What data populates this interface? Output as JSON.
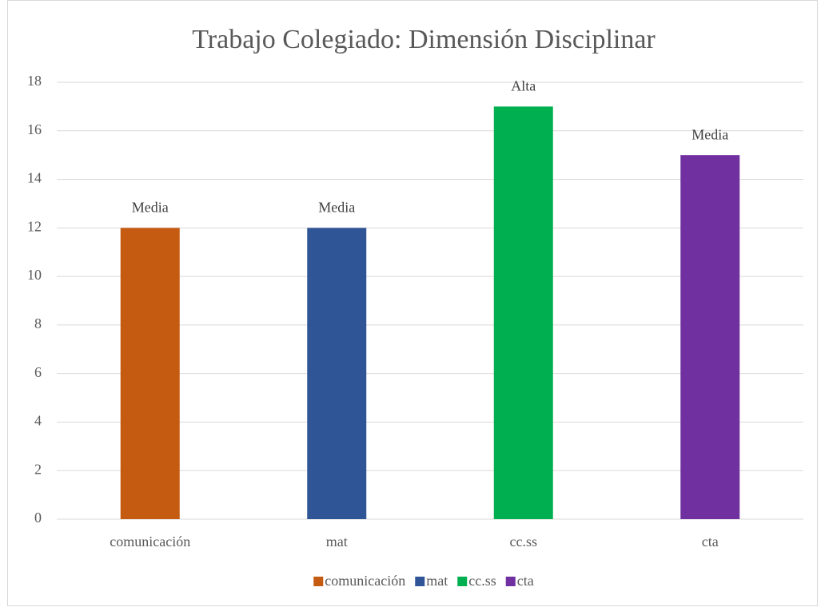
{
  "chart_data": {
    "type": "bar",
    "title": "Trabajo Colegiado: Dimensión Disciplinar",
    "categories": [
      "comunicación",
      "mat",
      "cc.ss",
      "cta"
    ],
    "values": [
      12,
      12,
      17,
      15
    ],
    "value_labels": [
      "Media",
      "Media",
      "Alta",
      "Media"
    ],
    "colors": [
      "#c55a11",
      "#2f5597",
      "#00b050",
      "#7030a0"
    ],
    "ylim": [
      0,
      18
    ],
    "yticks": [
      0,
      2,
      4,
      6,
      8,
      10,
      12,
      14,
      16,
      18
    ],
    "grid": true,
    "legend": "bottom"
  }
}
